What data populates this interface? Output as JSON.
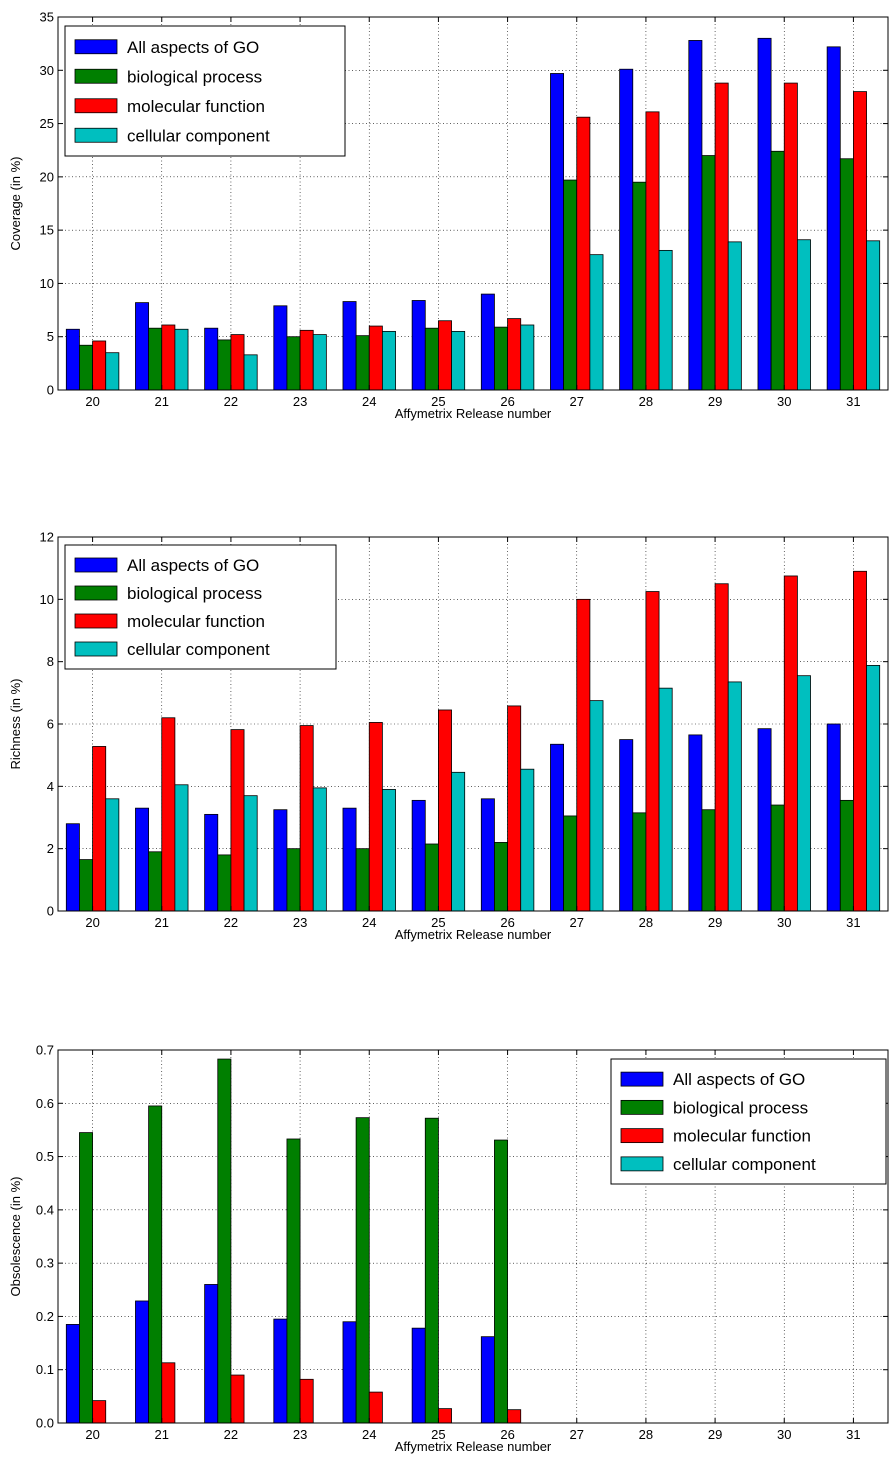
{
  "colors": {
    "all": "#0000FF",
    "bp": "#007F00",
    "mf": "#FF0000",
    "cc": "#00BFBF"
  },
  "chart_data": [
    {
      "type": "bar",
      "xlabel": "Affymetrix Release number",
      "ylabel": "Coverage (in %)",
      "ylim": [
        0,
        35
      ],
      "yticks": [
        "0",
        "5",
        "10",
        "15",
        "20",
        "25",
        "30",
        "35"
      ],
      "yticks_values": [
        0,
        5,
        10,
        15,
        20,
        25,
        30,
        35
      ],
      "grid": true,
      "legend_position": "top-left",
      "categories": [
        "20",
        "21",
        "22",
        "23",
        "24",
        "25",
        "26",
        "27",
        "28",
        "29",
        "30",
        "31"
      ],
      "series": [
        {
          "name": "All aspects of GO",
          "color_key": "all",
          "values": [
            5.7,
            8.2,
            5.8,
            7.9,
            8.3,
            8.4,
            9.0,
            29.7,
            30.1,
            32.8,
            33.0,
            32.2
          ]
        },
        {
          "name": "biological process",
          "color_key": "bp",
          "values": [
            4.2,
            5.8,
            4.7,
            5.0,
            5.1,
            5.8,
            5.9,
            19.7,
            19.5,
            22.0,
            22.4,
            21.7
          ]
        },
        {
          "name": "molecular function",
          "color_key": "mf",
          "values": [
            4.6,
            6.1,
            5.2,
            5.6,
            6.0,
            6.5,
            6.7,
            25.6,
            26.1,
            28.8,
            28.8,
            28.0
          ]
        },
        {
          "name": "cellular component",
          "color_key": "cc",
          "values": [
            3.5,
            5.7,
            3.3,
            5.2,
            5.5,
            5.5,
            6.1,
            12.7,
            13.1,
            13.9,
            14.1,
            14.0
          ]
        }
      ]
    },
    {
      "type": "bar",
      "xlabel": "Affymetrix Release number",
      "ylabel": "Richness (in %)",
      "ylim": [
        0,
        12
      ],
      "yticks": [
        "0",
        "2",
        "4",
        "6",
        "8",
        "10",
        "12"
      ],
      "yticks_values": [
        0,
        2,
        4,
        6,
        8,
        10,
        12
      ],
      "grid": true,
      "legend_position": "top-left",
      "categories": [
        "20",
        "21",
        "22",
        "23",
        "24",
        "25",
        "26",
        "27",
        "28",
        "29",
        "30",
        "31"
      ],
      "series": [
        {
          "name": "All aspects of GO",
          "color_key": "all",
          "values": [
            2.8,
            3.3,
            3.1,
            3.25,
            3.3,
            3.55,
            3.6,
            5.35,
            5.5,
            5.65,
            5.85,
            6.0
          ]
        },
        {
          "name": "biological process",
          "color_key": "bp",
          "values": [
            1.65,
            1.9,
            1.8,
            2.0,
            2.0,
            2.15,
            2.2,
            3.05,
            3.15,
            3.25,
            3.4,
            3.55
          ]
        },
        {
          "name": "molecular function",
          "color_key": "mf",
          "values": [
            5.28,
            6.2,
            5.82,
            5.95,
            6.05,
            6.45,
            6.58,
            10.0,
            10.25,
            10.5,
            10.75,
            10.9
          ]
        },
        {
          "name": "cellular component",
          "color_key": "cc",
          "values": [
            3.6,
            4.05,
            3.7,
            3.95,
            3.9,
            4.45,
            4.55,
            6.75,
            7.15,
            7.35,
            7.55,
            7.88
          ]
        }
      ]
    },
    {
      "type": "bar",
      "xlabel": "Affymetrix Release number",
      "ylabel": "Obsolescence (in %)",
      "ylim": [
        0,
        0.7
      ],
      "yticks": [
        "0.0",
        "0.1",
        "0.2",
        "0.3",
        "0.4",
        "0.5",
        "0.6",
        "0.7"
      ],
      "yticks_values": [
        0,
        0.1,
        0.2,
        0.3,
        0.4,
        0.5,
        0.6,
        0.7
      ],
      "grid": true,
      "legend_position": "top-right",
      "categories": [
        "20",
        "21",
        "22",
        "23",
        "24",
        "25",
        "26",
        "27",
        "28",
        "29",
        "30",
        "31"
      ],
      "series": [
        {
          "name": "All aspects of GO",
          "color_key": "all",
          "values": [
            0.185,
            0.229,
            0.26,
            0.195,
            0.19,
            0.178,
            0.162,
            0,
            0,
            0,
            0,
            0
          ]
        },
        {
          "name": "biological process",
          "color_key": "bp",
          "values": [
            0.545,
            0.595,
            0.683,
            0.533,
            0.573,
            0.572,
            0.531,
            0,
            0,
            0,
            0,
            0
          ]
        },
        {
          "name": "molecular function",
          "color_key": "mf",
          "values": [
            0.042,
            0.113,
            0.09,
            0.082,
            0.058,
            0.027,
            0.025,
            0,
            0,
            0,
            0,
            0
          ]
        },
        {
          "name": "cellular component",
          "color_key": "cc",
          "values": [
            0,
            0,
            0,
            0,
            0,
            0,
            0,
            0,
            0,
            0,
            0,
            0
          ]
        }
      ]
    }
  ]
}
